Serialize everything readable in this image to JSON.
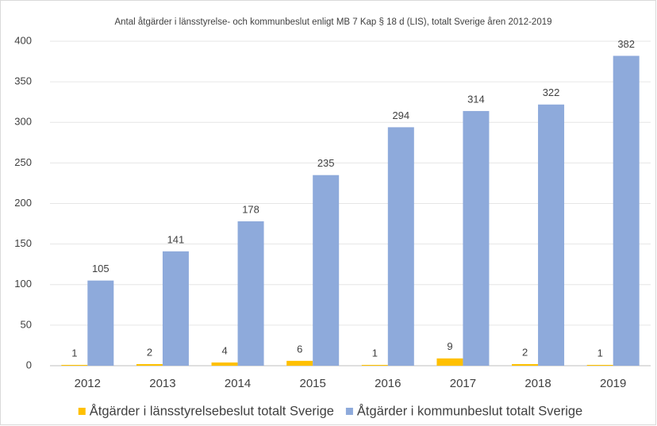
{
  "chart_data": {
    "type": "bar",
    "title": "Antal åtgärder i länsstyrelse- och kommunbeslut enligt MB 7 Kap § 18 d (LIS), totalt Sverige åren 2012-2019",
    "categories": [
      "2012",
      "2013",
      "2014",
      "2015",
      "2016",
      "2017",
      "2018",
      "2019"
    ],
    "series": [
      {
        "name": "Åtgärder i länsstyrelsebeslut totalt Sverige",
        "color": "#ffc000",
        "values": [
          1,
          2,
          4,
          6,
          1,
          9,
          2,
          1
        ]
      },
      {
        "name": "Åtgärder i kommunbeslut totalt Sverige",
        "color": "#8eaadb",
        "values": [
          105,
          141,
          178,
          235,
          294,
          314,
          322,
          382
        ]
      }
    ],
    "ylim": [
      0,
      400
    ],
    "yticks": [
      0,
      50,
      100,
      150,
      200,
      250,
      300,
      350,
      400
    ],
    "grid": true,
    "legend": "bottom"
  }
}
